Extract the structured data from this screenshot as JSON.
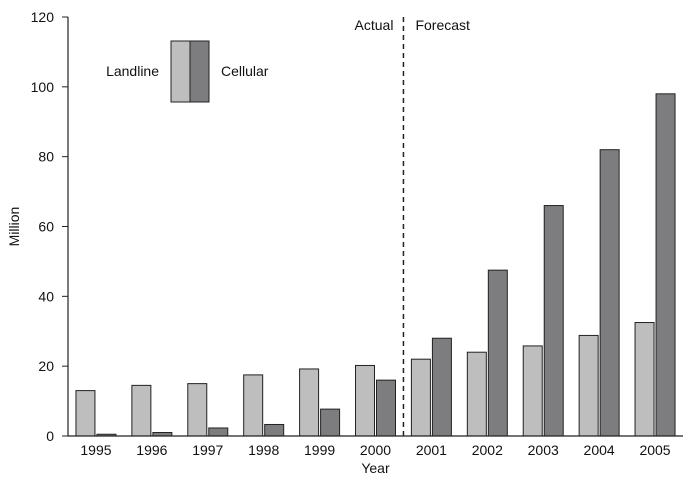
{
  "chart_data": {
    "type": "bar",
    "categories": [
      "1995",
      "1996",
      "1997",
      "1998",
      "1999",
      "2000",
      "2001",
      "2002",
      "2003",
      "2004",
      "2005"
    ],
    "series": [
      {
        "name": "Landline",
        "values": [
          13,
          14.5,
          15,
          17.5,
          19.2,
          20.2,
          22,
          24,
          25.8,
          28.8,
          32.5
        ]
      },
      {
        "name": "Cellular",
        "values": [
          0.5,
          1,
          2.3,
          3.3,
          7.7,
          16,
          28,
          47.5,
          66,
          82,
          98
        ]
      }
    ],
    "title": "",
    "xlabel": "Year",
    "ylabel": "Million",
    "ylim": [
      0,
      120
    ],
    "yticks": [
      0,
      20,
      40,
      60,
      80,
      100,
      120
    ],
    "annotations": {
      "left": "Actual",
      "right": "Forecast"
    },
    "legend": {
      "placement": "top-left"
    },
    "grid": false,
    "colors": {
      "Landline": "#bebebe",
      "Cellular": "#7d7d7f",
      "edge": "#222222"
    }
  }
}
